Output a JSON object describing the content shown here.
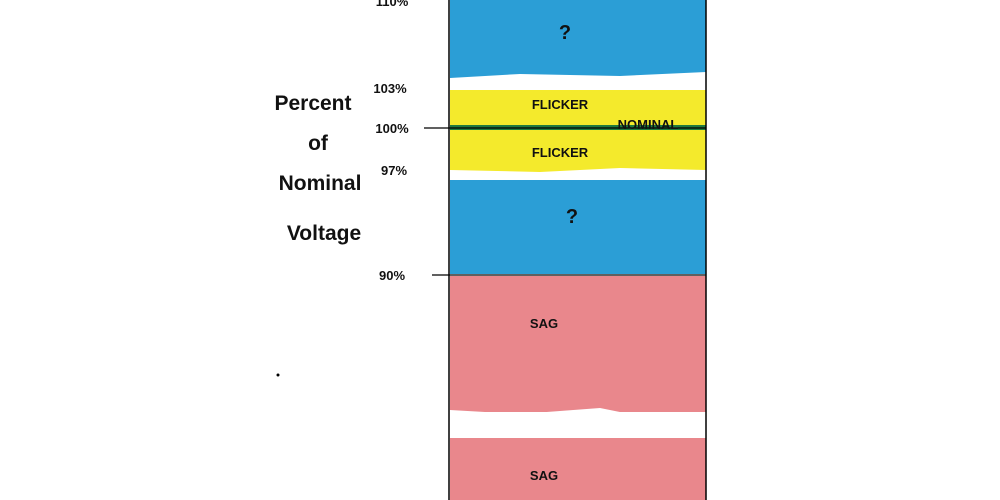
{
  "axis_title": [
    "Percent",
    "of",
    "Nominal",
    "Voltage"
  ],
  "ticks": [
    "110%",
    "103%",
    "100%",
    "97%",
    "90%"
  ],
  "regions": {
    "upper_unknown": "?",
    "upper_flicker": "FLICKER",
    "nominal": "NOMINAL",
    "lower_flicker": "FLICKER",
    "lower_unknown": "?",
    "sag_upper": "SAG",
    "sag_lower": "SAG"
  },
  "colors": {
    "unknown": "#2b9ed6",
    "flicker": "#f4ea2c",
    "nominal_line": "#1f7a3f",
    "sag": "#e9878c",
    "border": "#000000"
  }
}
